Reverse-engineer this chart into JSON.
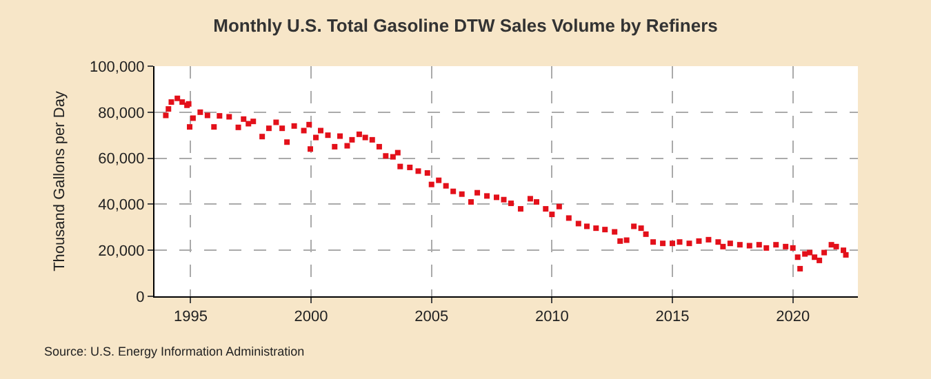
{
  "chart_data": {
    "type": "scatter",
    "title": "Monthly U.S. Total Gasoline DTW Sales Volume by Refiners",
    "ylabel": "Thousand Gallons per Day",
    "annotations": [
      "Source: U.S. Energy Information Administration"
    ],
    "x": [
      1993.97,
      1994.08,
      1994.2,
      1994.45,
      1994.65,
      1994.85,
      1994.92,
      1994.96,
      1995.1,
      1995.4,
      1995.7,
      1995.97,
      1996.2,
      1996.6,
      1996.98,
      1997.2,
      1997.4,
      1997.6,
      1997.97,
      1998.25,
      1998.55,
      1998.8,
      1999.0,
      1999.3,
      1999.7,
      1999.92,
      1999.97,
      2000.2,
      2000.4,
      2000.7,
      2000.98,
      2001.2,
      2001.5,
      2001.7,
      2002.0,
      2002.25,
      2002.54,
      2002.83,
      2003.1,
      2003.4,
      2003.6,
      2003.7,
      2004.1,
      2004.45,
      2004.83,
      2005.0,
      2005.3,
      2005.6,
      2005.9,
      2006.26,
      2006.64,
      2006.9,
      2007.3,
      2007.7,
      2008.0,
      2008.3,
      2008.7,
      2009.1,
      2009.36,
      2009.74,
      2010.0,
      2010.3,
      2010.7,
      2011.1,
      2011.45,
      2011.83,
      2012.2,
      2012.6,
      2012.83,
      2013.1,
      2013.4,
      2013.7,
      2013.9,
      2014.2,
      2014.6,
      2015.0,
      2015.3,
      2015.7,
      2016.1,
      2016.5,
      2016.9,
      2017.1,
      2017.4,
      2017.8,
      2018.2,
      2018.6,
      2018.9,
      2019.3,
      2019.7,
      2020.0,
      2020.2,
      2020.3,
      2020.5,
      2020.7,
      2020.9,
      2021.1,
      2021.3,
      2021.6,
      2021.8,
      2022.1,
      2022.2
    ],
    "series": [
      {
        "color": "#e3101a",
        "values": [
          78600,
          81400,
          84400,
          86000,
          84400,
          83000,
          83600,
          73600,
          77400,
          80000,
          78600,
          73600,
          78400,
          78000,
          73400,
          77000,
          75000,
          76000,
          69400,
          73000,
          75600,
          73000,
          67000,
          74000,
          72000,
          74600,
          64000,
          69000,
          72000,
          70000,
          65000,
          69600,
          65400,
          68000,
          70400,
          69000,
          68000,
          65000,
          61000,
          60600,
          62400,
          56400,
          56000,
          54400,
          53600,
          48600,
          50400,
          48000,
          45600,
          44400,
          41000,
          45000,
          43600,
          43000,
          42000,
          40400,
          38000,
          42400,
          41000,
          38000,
          35600,
          39000,
          34000,
          31600,
          30400,
          29600,
          29000,
          28000,
          24000,
          24400,
          30400,
          29600,
          27000,
          23600,
          23000,
          23000,
          23600,
          23000,
          24000,
          24600,
          23600,
          21600,
          23000,
          22400,
          22000,
          22400,
          21000,
          22400,
          21600,
          21000,
          17000,
          12000,
          18400,
          19000,
          17000,
          15600,
          19000,
          22400,
          21600,
          20000,
          18000
        ]
      }
    ],
    "xlim": [
      1993.5,
      2022.7
    ],
    "xticks": [
      1995,
      2000,
      2005,
      2010,
      2015,
      2020
    ],
    "ylim": [
      0,
      100000
    ],
    "yticks": [
      {
        "value": 0,
        "label": "0"
      },
      {
        "value": 20000,
        "label": "20,000"
      },
      {
        "value": 40000,
        "label": "40,000"
      },
      {
        "value": 60000,
        "label": "60,000"
      },
      {
        "value": 80000,
        "label": "80,000"
      },
      {
        "value": 100000,
        "label": "100,000"
      }
    ],
    "grid": true,
    "marker": "square"
  }
}
